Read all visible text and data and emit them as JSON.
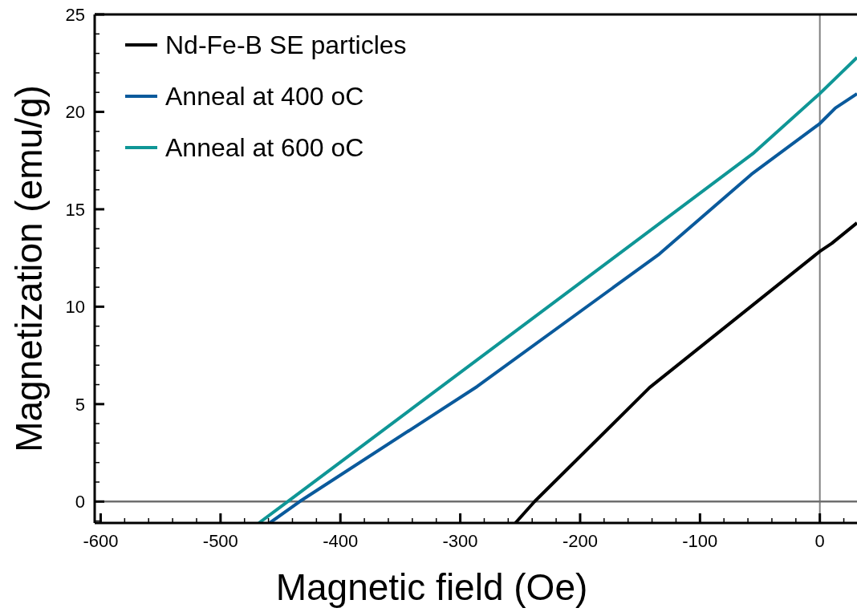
{
  "chart_data": {
    "type": "line",
    "xlabel": "Magnetic field (Oe)",
    "ylabel": "Magnetization (emu/g)",
    "xlim": [
      -605,
      31
    ],
    "ylim": [
      -1.1,
      25
    ],
    "xticks": [
      -600,
      -500,
      -400,
      -300,
      -200,
      -100,
      0
    ],
    "yticks": [
      0,
      5,
      10,
      15,
      20,
      25
    ],
    "legend": "top left",
    "grid": false,
    "line_style": "solid",
    "ref_lines": [
      {
        "axis": "x",
        "value": 0,
        "color": "#808080"
      },
      {
        "axis": "y",
        "value": 0,
        "color": "#6e6e6e"
      }
    ],
    "series": [
      {
        "name": "Nd-Fe-B SE particles",
        "color": "#000000",
        "x": [
          -254,
          -238,
          -142,
          0,
          10,
          31
        ],
        "values": [
          -1.1,
          0,
          5.85,
          12.84,
          13.25,
          14.3
        ]
      },
      {
        "name": "Anneal at 400 oC",
        "color": "#0a5a9c",
        "x": [
          -459,
          -434,
          -286,
          -134,
          -57,
          0,
          13,
          31
        ],
        "values": [
          -1.1,
          0,
          5.9,
          12.7,
          16.8,
          19.4,
          20.2,
          20.93
        ]
      },
      {
        "name": "Anneal at 600 oC",
        "color": "#0f9696",
        "x": [
          -468,
          -444,
          -56,
          0,
          31
        ],
        "values": [
          -1.1,
          0,
          17.85,
          20.94,
          22.79
        ]
      }
    ]
  }
}
